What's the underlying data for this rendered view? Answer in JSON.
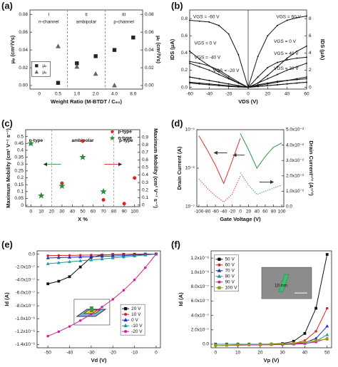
{
  "chart_data": [
    {
      "type": "scatter",
      "label": "(a)",
      "xlabel": "Weight Ratio (M-BTDT / C₆₀)",
      "ylabel": "μₚ (cm²/Vs)",
      "y2label": "μₑ (cm²/Vs)",
      "categories": [
        "0",
        "0.5",
        "1.0",
        "2.0",
        "4.0",
        "8.0"
      ],
      "series": [
        {
          "name": "μₚ",
          "color": "#222222",
          "marker": "square",
          "values": [
            null,
            0.003,
            0.025,
            0.033,
            0.04,
            0.054
          ]
        },
        {
          "name": "μₑ",
          "color": "#666666",
          "marker": "triangle",
          "axis": "y2",
          "values": [
            null,
            0.044,
            0.021,
            0.013,
            0.0,
            null
          ]
        }
      ],
      "ylim": [
        -0.004,
        0.085
      ],
      "yticks": [
        {
          "value": 0,
          "label": "0.00"
        },
        0.02,
        0.04,
        0.06,
        0.08
      ],
      "y2lim": [
        -0.004,
        0.085
      ],
      "y2ticks": [
        {
          "value": 0,
          "label": "0.00"
        },
        0.02,
        0.04,
        0.06,
        0.08
      ],
      "legend": "lower left",
      "annotations": [
        "I",
        "n-channel",
        "II",
        "ambipolar",
        "III",
        "p-channel"
      ]
    },
    {
      "type": "line",
      "label": "(b)",
      "xlabel": "VDS (V)",
      "ylabel": "IDS (μA)",
      "y2label": "IDS (μA)",
      "x": [
        -60,
        -50,
        -40,
        -30,
        -20,
        -10,
        0,
        10,
        20,
        30,
        40,
        50,
        60
      ],
      "series": [
        {
          "name": "VGS = -60 V",
          "color": "#111111",
          "marker": "dot",
          "values": [
            0.78,
            0.77,
            0.76,
            0.72,
            0.62,
            0.38,
            0.0,
            0.05,
            0.1,
            0.15,
            0.2,
            0.24,
            0.28
          ]
        },
        {
          "name": "VGS = -40 V",
          "color": "#111111",
          "marker": "dot",
          "values": [
            0.3,
            0.28,
            0.25,
            0.2,
            0.13,
            0.06,
            0.0,
            0.02,
            0.04,
            0.06,
            0.08,
            0.1,
            0.12
          ]
        },
        {
          "name": "VGS = -20 V",
          "color": "#111111",
          "marker": "dot",
          "values": [
            0.12,
            0.1,
            0.08,
            0.06,
            0.04,
            0.02,
            0.0,
            0.01,
            0.02,
            0.03,
            0.04,
            0.05,
            0.06
          ]
        },
        {
          "name": "VGS = 0 V",
          "color": "#111111",
          "marker": "dot",
          "values": [
            0.42,
            0.33,
            0.25,
            0.18,
            0.11,
            0.05,
            0.0,
            0.01,
            0.02,
            0.03,
            0.04,
            0.05,
            0.06
          ]
        },
        {
          "name": "VGS = 60 V",
          "color": "#111111",
          "marker": "dot",
          "axis": "y2",
          "values": [
            2.8,
            2.4,
            2.0,
            1.5,
            1.0,
            0.5,
            0.0,
            3.6,
            6.0,
            7.2,
            7.8,
            8.1,
            8.3
          ]
        },
        {
          "name": "VGS = 40 V",
          "color": "#111111",
          "marker": "dot",
          "axis": "y2",
          "values": [
            1.2,
            1.0,
            0.8,
            0.6,
            0.4,
            0.2,
            0.0,
            1.2,
            2.3,
            2.9,
            3.2,
            3.4,
            3.5
          ]
        },
        {
          "name": "VGS = 20 V",
          "color": "#111111",
          "marker": "dot",
          "axis": "y2",
          "values": [
            0.5,
            0.4,
            0.3,
            0.2,
            0.1,
            0.05,
            0.0,
            0.3,
            0.5,
            0.7,
            0.8,
            0.9,
            1.0
          ]
        },
        {
          "name": "VGS = 0 V",
          "color": "#111111",
          "marker": "dot",
          "axis": "y2",
          "values": [
            0.6,
            0.5,
            0.4,
            0.3,
            0.2,
            0.1,
            0.0,
            0.5,
            1.4,
            2.4,
            3.4,
            4.2,
            4.8
          ]
        }
      ],
      "xlim": [
        -60,
        60
      ],
      "xticks": [
        -60,
        -40,
        -20,
        0,
        20,
        40,
        60
      ],
      "ylim": [
        -0.02,
        0.9
      ],
      "yticks": [
        {
          "value": 0,
          "label": "0.0"
        },
        0.2,
        0.4,
        0.6,
        0.8
      ],
      "y2lim": [
        -0.2,
        9
      ],
      "y2ticks": [
        0,
        2,
        4,
        6,
        8
      ]
    },
    {
      "type": "scatter",
      "label": "(c)",
      "xlabel": "X %",
      "ylabel": "Maximum Mobility (cm² V⁻¹ s⁻¹)",
      "y2label": "Maximum Mobility (cm² V⁻¹ s⁻¹)",
      "series": [
        {
          "name": "p-type",
          "color": "#e02020",
          "marker": "circle",
          "axis": "y2",
          "x": [
            30,
            50,
            70,
            90,
            100
          ],
          "values": [
            0.29,
            0.85,
            0.07,
            0.02,
            0.36
          ]
        },
        {
          "name": "n-type",
          "color": "#2e8b3e",
          "marker": "star",
          "x": [
            0,
            10,
            30,
            50,
            70
          ],
          "values": [
            0.45,
            0.07,
            0.14,
            0.35,
            0.1
          ]
        }
      ],
      "xlim": [
        -5,
        105
      ],
      "xticks": [
        0,
        10,
        20,
        30,
        40,
        50,
        60,
        70,
        80,
        90,
        100
      ],
      "ylim": [
        -0.01,
        0.55
      ],
      "yticks": [
        0,
        0.05,
        0.1,
        0.15,
        0.2,
        0.25,
        0.3,
        0.35,
        0.4,
        0.45,
        0.5
      ],
      "y2lim": [
        -0.02,
        1.0
      ],
      "y2ticks": [
        0,
        0.1,
        0.2,
        0.3,
        0.4,
        0.5,
        0.6,
        0.7,
        0.8,
        0.9
      ],
      "legend": "upper right",
      "annotations": [
        "n-type",
        "ambipolar",
        "p-type"
      ]
    },
    {
      "type": "line",
      "label": "(d)",
      "xlabel": "Gate Voltage (V)",
      "ylabel": "Drain Current (A)",
      "y2label": "Drain Current¹ᐟ² (A¹ᐟ²)",
      "x": [
        -100,
        -80,
        -60,
        -40,
        -20,
        0,
        20,
        40,
        60,
        80,
        100
      ],
      "series": [
        {
          "color": "#e03030",
          "values": [
            7e-06,
            3e-06,
            1.2e-06,
            4e-07,
            1.5e-06,
            6e-06,
            null,
            null,
            null,
            null,
            null
          ]
        },
        {
          "color": "#2a9a4a",
          "values": [
            null,
            null,
            null,
            null,
            null,
            8e-06,
            3e-06,
            1e-06,
            2e-06,
            3.5e-06,
            4.5e-06
          ]
        },
        {
          "color": "#e03030",
          "style": "dotted",
          "axis": "y2",
          "values": [
            0.018,
            0.012,
            0.007,
            0.003,
            0.008,
            0.02,
            null,
            null,
            null,
            null,
            null
          ]
        },
        {
          "color": "#2a9a4a",
          "style": "dotted",
          "axis": "y2",
          "values": [
            null,
            null,
            null,
            null,
            null,
            0.022,
            0.014,
            0.008,
            0.01,
            0.012,
            0.014
          ]
        }
      ],
      "xlim": [
        -105,
        105
      ],
      "xticks": [
        -100,
        -80,
        -60,
        -40,
        -20,
        0,
        20,
        40,
        60,
        80,
        100
      ],
      "ylog": true,
      "ylim": [
        1e-07,
        1e-05
      ],
      "yticks": [
        {
          "value": 1e-07,
          "label": "10⁻⁷"
        },
        {
          "value": 1e-06,
          "label": "10⁻⁶"
        },
        {
          "value": 1e-05,
          "label": "10⁻⁵"
        }
      ],
      "y2lim": [
        0,
        0.05
      ],
      "y2ticks": [
        {
          "value": 0,
          "label": "0.0"
        },
        {
          "value": 0.01,
          "label": "1.0x10⁻²"
        },
        {
          "value": 0.02,
          "label": "2.0x10⁻²"
        },
        {
          "value": 0.03,
          "label": "3.0x10⁻²"
        },
        {
          "value": 0.04,
          "label": "4.0x10⁻²"
        },
        {
          "value": 0.05,
          "label": "5.0x10⁻²"
        }
      ]
    },
    {
      "type": "line",
      "label": "(e)",
      "xlabel": "Vd (V)",
      "ylabel": "Id (A)",
      "x": [
        -50,
        -45,
        -40,
        -35,
        -30,
        -25,
        -20,
        -15,
        -10,
        -5,
        0
      ],
      "series": [
        {
          "name": "20 V",
          "color": "#111111",
          "marker": "square",
          "values": [
            -4.6e-07,
            -4.2e-07,
            -3.5e-07,
            -2e-07,
            -5e-08,
            -1.5e-08,
            -8e-09,
            -5e-09,
            -3e-09,
            -1e-09,
            0
          ]
        },
        {
          "name": "10 V",
          "color": "#e02020",
          "marker": "circle",
          "values": [
            -2.5e-08,
            -2.2e-08,
            -2e-08,
            -1.8e-08,
            -1.5e-08,
            -1.2e-08,
            -1e-08,
            -7e-09,
            -5e-09,
            -2e-09,
            0
          ]
        },
        {
          "name": "0 V",
          "color": "#2030d0",
          "marker": "triangle",
          "values": [
            -6e-08,
            -5.5e-08,
            -5e-08,
            -4.5e-08,
            -4e-08,
            -3.5e-08,
            -3e-08,
            -2.5e-08,
            -1.5e-08,
            -7e-09,
            0
          ]
        },
        {
          "name": "-10 V",
          "color": "#1a9a9a",
          "marker": "triangle",
          "values": [
            -1.5e-07,
            -1.35e-07,
            -1.2e-07,
            -1.05e-07,
            -9e-08,
            -7.5e-08,
            -6e-08,
            -4.5e-08,
            -3e-08,
            -1.5e-08,
            0
          ]
        },
        {
          "name": "-20 V",
          "color": "#d02090",
          "marker": "circle",
          "values": [
            -1.27e-06,
            -1.2e-06,
            -1.12e-06,
            -1.03e-06,
            -9.3e-07,
            -8.2e-07,
            -7e-07,
            -5.6e-07,
            -4e-07,
            -2.1e-07,
            0
          ]
        }
      ],
      "xlim": [
        -55,
        2
      ],
      "xticks": [
        -50,
        -40,
        -30,
        -20,
        -10,
        0
      ],
      "ylim": [
        -1.45e-06,
        5e-08
      ],
      "yticks": [
        {
          "value": 0,
          "label": "0.0"
        },
        {
          "value": -2e-07,
          "label": "-2.0x10⁻⁷"
        },
        {
          "value": -4e-07,
          "label": "-4.0x10⁻⁷"
        },
        {
          "value": -6e-07,
          "label": "-6.0x10⁻⁷"
        },
        {
          "value": -8e-07,
          "label": "-8.0x10⁻⁷"
        },
        {
          "value": -1e-06,
          "label": "-1.0x10⁻⁶"
        },
        {
          "value": -1.2e-06,
          "label": "-1.2x10⁻⁶"
        },
        {
          "value": -1.4e-06,
          "label": "-1.4x10⁻⁶"
        }
      ],
      "legend": "lower right"
    },
    {
      "type": "line",
      "label": "(f)",
      "xlabel": "Vp (V)",
      "ylabel": "Id (A)",
      "x": [
        0,
        5,
        10,
        15,
        20,
        25,
        30,
        35,
        40,
        45,
        50
      ],
      "series": [
        {
          "name": "50 V",
          "color": "#111111",
          "marker": "square",
          "values": [
            0,
            0,
            0,
            0,
            0,
            2e-09,
            1e-08,
            4e-08,
            1.5e-07,
            5e-07,
            1.25e-06
          ]
        },
        {
          "name": "60 V",
          "color": "#e02020",
          "marker": "circle",
          "values": [
            0,
            0,
            0,
            0,
            0,
            0,
            2e-09,
            1e-08,
            5e-08,
            1.8e-07,
            5e-07
          ]
        },
        {
          "name": "70 V",
          "color": "#2030d0",
          "marker": "triangle",
          "values": [
            0,
            0,
            0,
            0,
            0,
            0,
            0,
            5e-09,
            2e-08,
            8e-08,
            2.5e-07
          ]
        },
        {
          "name": "80 V",
          "color": "#1a9a9a",
          "marker": "triangle",
          "values": [
            0,
            0,
            0,
            0,
            0,
            0,
            0,
            2e-09,
            1e-08,
            4e-08,
            1.3e-07
          ]
        },
        {
          "name": "90 V",
          "color": "#d02090",
          "marker": "circle",
          "values": [
            -2e-08,
            -1.8e-08,
            -1.5e-08,
            -1.2e-08,
            -1e-08,
            -8e-09,
            -5e-09,
            0,
            1e-08,
            3e-08,
            8e-08
          ]
        },
        {
          "name": "100 V",
          "color": "#9a9a10",
          "marker": "square",
          "values": [
            -2e-08,
            -1.5e-08,
            -1e-08,
            -6e-09,
            -3e-09,
            0,
            5e-09,
            1.5e-08,
            3e-08,
            5e-08,
            7e-08
          ]
        }
      ],
      "xlim": [
        -2,
        52
      ],
      "xticks": [
        0,
        10,
        20,
        30,
        40,
        50
      ],
      "ylim": [
        -5e-08,
        1.3e-06
      ],
      "yticks": [
        {
          "value": 0,
          "label": "0.0"
        },
        {
          "value": 2e-07,
          "label": "2.0x10⁻⁷"
        },
        {
          "value": 4e-07,
          "label": "4.0x10⁻⁷"
        },
        {
          "value": 6e-07,
          "label": "6.0x10⁻⁷"
        },
        {
          "value": 8e-07,
          "label": "8.0x10⁻⁷"
        },
        {
          "value": 1e-06,
          "label": "1.0x10⁻⁶"
        },
        {
          "value": 1.2e-06,
          "label": "1.2x10⁻⁶"
        }
      ],
      "legend": "upper left",
      "annotations": [
        "10 nm"
      ]
    }
  ]
}
